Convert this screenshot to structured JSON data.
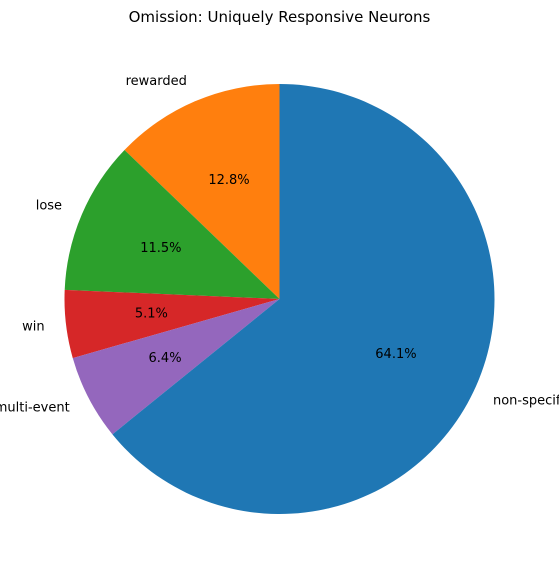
{
  "chart_data": {
    "type": "pie",
    "title": "Omission: Uniquely Responsive Neurons",
    "start_angle_deg": 90,
    "direction": "counterclockwise",
    "slices": [
      {
        "label": "rewarded",
        "value": 12.8,
        "pct_label": "12.8%",
        "color": "#ff7f0e"
      },
      {
        "label": "lose",
        "value": 11.5,
        "pct_label": "11.5%",
        "color": "#2ca02c"
      },
      {
        "label": "win",
        "value": 5.1,
        "pct_label": "5.1%",
        "color": "#d62728"
      },
      {
        "label": "multi-event",
        "value": 6.4,
        "pct_label": "6.4%",
        "color": "#9467bd"
      },
      {
        "label": "non-specific",
        "value": 64.1,
        "pct_label": "64.1%",
        "color": "#1f77b4"
      }
    ]
  }
}
